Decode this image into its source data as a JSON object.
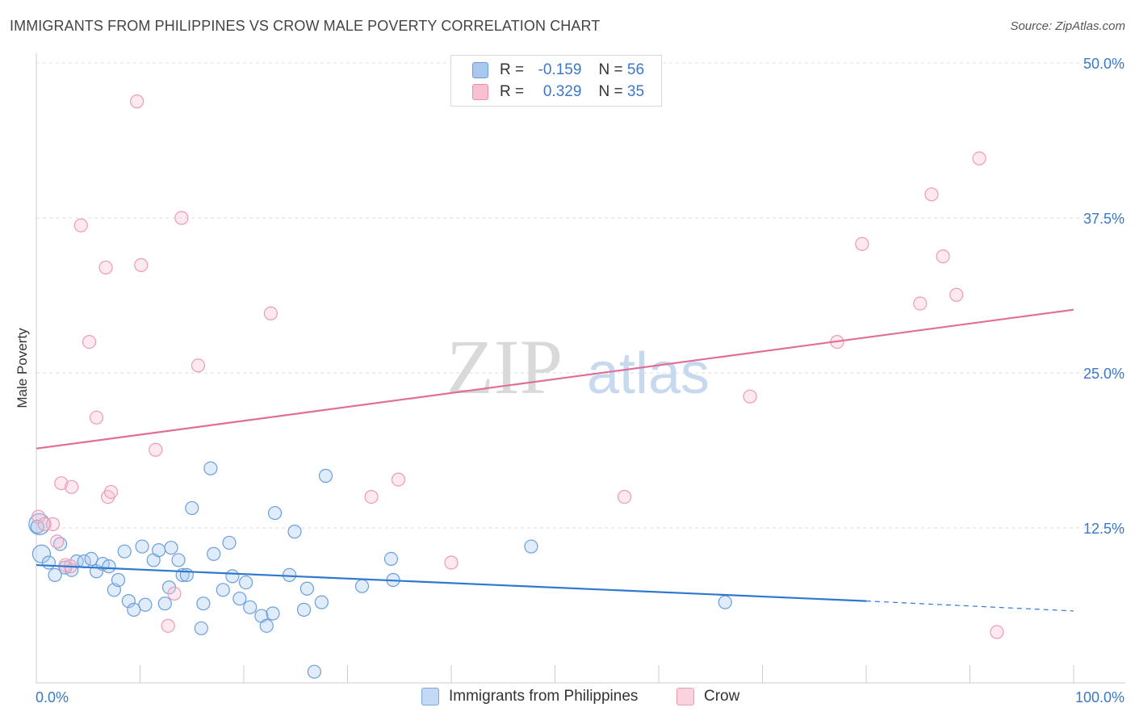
{
  "header": {
    "title": "IMMIGRANTS FROM PHILIPPINES VS CROW MALE POVERTY CORRELATION CHART",
    "source": "Source: ZipAtlas.com"
  },
  "watermark": {
    "zip": "ZIP",
    "atlas": "atlas"
  },
  "legend": {
    "rows": [
      {
        "r_label": "R =",
        "r_value": "-0.159",
        "n_label": "N =",
        "n_value": "56",
        "color": "#a8c8f0",
        "border": "#6a9fdc"
      },
      {
        "r_label": "R =",
        "r_value": "0.329",
        "n_label": "N =",
        "n_value": "35",
        "color": "#f8c0d0",
        "border": "#e890aa"
      }
    ]
  },
  "bottom_legend": {
    "items": [
      {
        "label": "Immigrants from Philippines",
        "color": "#c3d9f5",
        "border": "#7aa8e0"
      },
      {
        "label": "Crow",
        "color": "#fbd3de",
        "border": "#ec9bb3"
      }
    ]
  },
  "chart_data": {
    "type": "scatter",
    "title": "IMMIGRANTS FROM PHILIPPINES VS CROW MALE POVERTY CORRELATION CHART",
    "xlabel": "",
    "ylabel": "Male Poverty",
    "xlim": [
      0,
      100
    ],
    "ylim": [
      0,
      50
    ],
    "x_tick_labels": [
      "0.0%",
      "100.0%"
    ],
    "y_ticks": [
      12.5,
      25.0,
      37.5,
      50.0
    ],
    "y_tick_labels": [
      "12.5%",
      "25.0%",
      "37.5%",
      "50.0%"
    ],
    "grid": true,
    "series": [
      {
        "name": "Immigrants from Philippines",
        "color": "#6a9fdc",
        "fill": "rgba(168,200,240,0.35)",
        "trend_color": "#2f78d0",
        "trend": {
          "x0": 0,
          "y0": 9.5,
          "x1": 80,
          "y1": 6.6,
          "dash_to_x": 100,
          "dash_to_y": 5.8
        },
        "points": [
          [
            0.3,
            12.8
          ],
          [
            0.5,
            10.4
          ],
          [
            1.2,
            9.7
          ],
          [
            1.8,
            8.7
          ],
          [
            2.3,
            11.2
          ],
          [
            2.8,
            9.3
          ],
          [
            3.4,
            9.1
          ],
          [
            3.9,
            9.8
          ],
          [
            4.6,
            9.8
          ],
          [
            5.3,
            10.0
          ],
          [
            5.8,
            9.0
          ],
          [
            6.4,
            9.6
          ],
          [
            7.0,
            9.4
          ],
          [
            7.5,
            7.5
          ],
          [
            7.9,
            8.3
          ],
          [
            8.5,
            10.6
          ],
          [
            8.9,
            6.6
          ],
          [
            9.4,
            5.9
          ],
          [
            10.2,
            11.0
          ],
          [
            10.5,
            6.3
          ],
          [
            11.3,
            9.9
          ],
          [
            11.8,
            10.7
          ],
          [
            12.4,
            6.4
          ],
          [
            12.8,
            7.7
          ],
          [
            13.0,
            10.9
          ],
          [
            13.7,
            9.9
          ],
          [
            14.1,
            8.7
          ],
          [
            14.5,
            8.7
          ],
          [
            15.0,
            14.1
          ],
          [
            15.9,
            4.4
          ],
          [
            16.1,
            6.4
          ],
          [
            16.8,
            17.3
          ],
          [
            17.1,
            10.4
          ],
          [
            18.0,
            7.5
          ],
          [
            18.6,
            11.3
          ],
          [
            18.9,
            8.6
          ],
          [
            19.6,
            6.8
          ],
          [
            20.2,
            8.1
          ],
          [
            20.6,
            6.1
          ],
          [
            21.7,
            5.4
          ],
          [
            22.2,
            4.6
          ],
          [
            22.8,
            5.6
          ],
          [
            23.0,
            13.7
          ],
          [
            24.4,
            8.7
          ],
          [
            24.9,
            12.2
          ],
          [
            25.8,
            5.9
          ],
          [
            26.1,
            7.6
          ],
          [
            26.8,
            0.9
          ],
          [
            27.5,
            6.5
          ],
          [
            27.9,
            16.7
          ],
          [
            31.4,
            7.8
          ],
          [
            34.2,
            10.0
          ],
          [
            34.4,
            8.3
          ],
          [
            47.7,
            11.0
          ],
          [
            66.4,
            6.5
          ],
          [
            0.1,
            12.6
          ]
        ]
      },
      {
        "name": "Crow",
        "color": "#ec9bb3",
        "fill": "rgba(248,192,208,0.35)",
        "trend_color": "#e06e95",
        "trend": {
          "x0": 0,
          "y0": 18.9,
          "x1": 100,
          "y1": 30.1
        },
        "points": [
          [
            0.2,
            13.4
          ],
          [
            0.8,
            12.8
          ],
          [
            1.6,
            12.8
          ],
          [
            2.0,
            11.4
          ],
          [
            2.4,
            16.1
          ],
          [
            2.8,
            9.5
          ],
          [
            3.4,
            15.8
          ],
          [
            4.3,
            36.9
          ],
          [
            5.1,
            27.5
          ],
          [
            5.8,
            21.4
          ],
          [
            6.7,
            33.5
          ],
          [
            6.9,
            15.0
          ],
          [
            7.2,
            15.4
          ],
          [
            9.7,
            46.9
          ],
          [
            10.1,
            33.7
          ],
          [
            11.5,
            18.8
          ],
          [
            12.7,
            4.6
          ],
          [
            13.3,
            7.2
          ],
          [
            14.0,
            37.5
          ],
          [
            15.6,
            25.6
          ],
          [
            22.6,
            29.8
          ],
          [
            32.3,
            15.0
          ],
          [
            34.9,
            16.4
          ],
          [
            40.0,
            9.7
          ],
          [
            56.7,
            15.0
          ],
          [
            68.8,
            23.1
          ],
          [
            77.2,
            27.5
          ],
          [
            79.6,
            35.4
          ],
          [
            85.2,
            30.6
          ],
          [
            86.3,
            39.4
          ],
          [
            87.4,
            34.4
          ],
          [
            88.7,
            31.3
          ],
          [
            90.9,
            42.3
          ],
          [
            92.6,
            4.1
          ],
          [
            3.3,
            9.4
          ]
        ]
      }
    ]
  }
}
